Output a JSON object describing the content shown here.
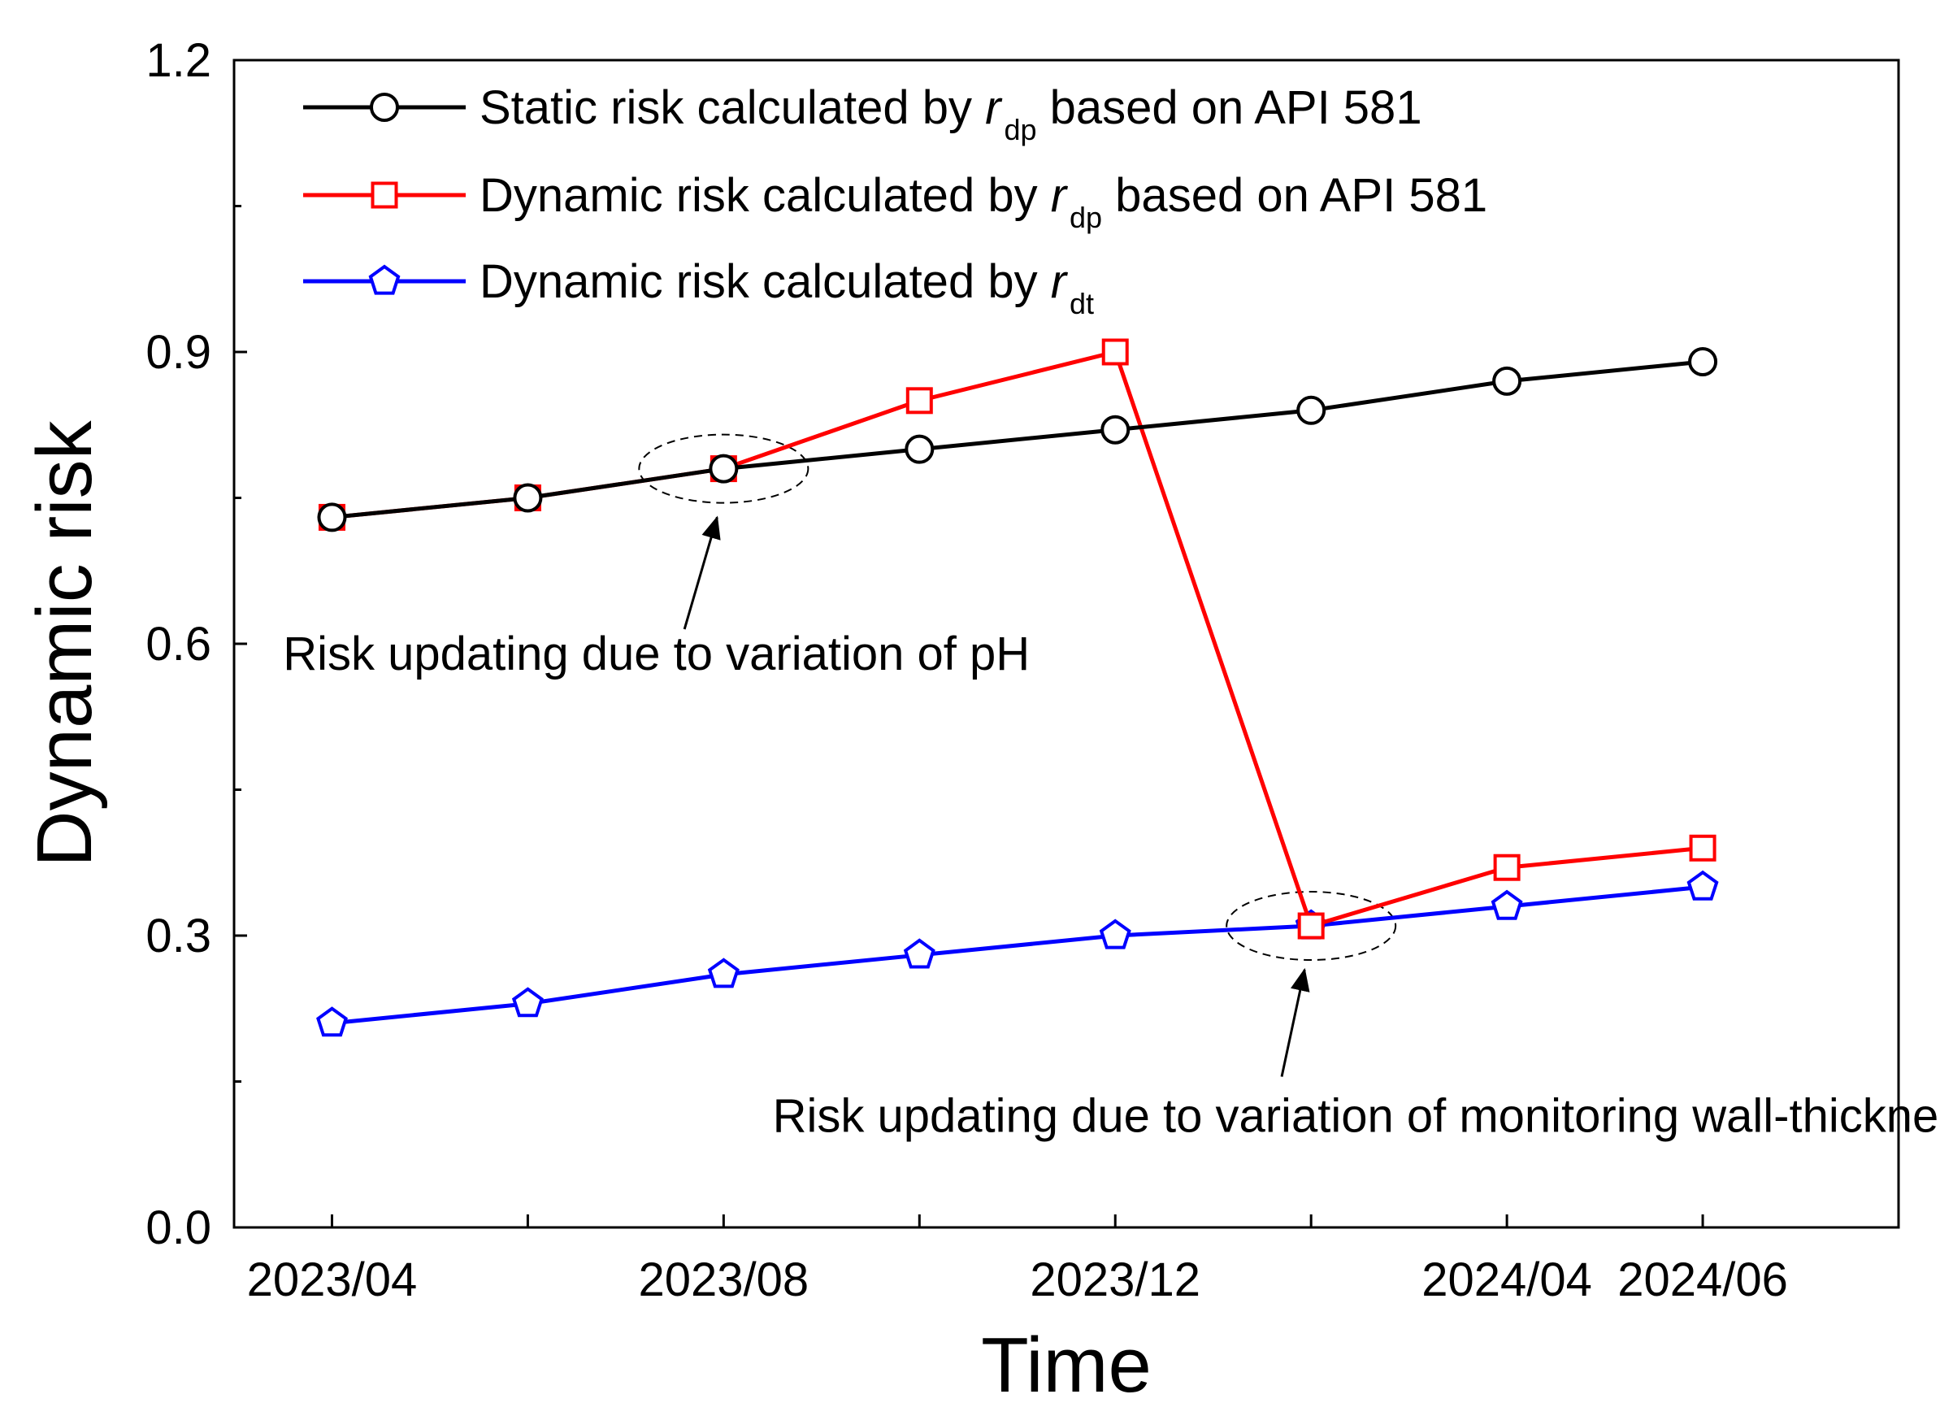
{
  "chart_data": {
    "type": "line",
    "title": "",
    "xlabel": "Time",
    "ylabel": "Dynamic risk",
    "ylim": [
      0.0,
      1.2
    ],
    "yticks": [
      "0.0",
      "0.3",
      "0.6",
      "0.9",
      "1.2"
    ],
    "x": [
      0,
      2,
      4,
      6,
      8,
      10,
      12,
      14
    ],
    "xlim": [
      -1,
      16
    ],
    "xtick_positions": [
      0,
      4,
      8,
      12,
      14
    ],
    "xtick_labels": [
      "2023/04",
      "2023/08",
      "2023/12",
      "2024/04",
      "2024/06"
    ],
    "series": [
      {
        "name": "Static risk calculated by r_dp based on API 581",
        "legend_prefix": "Static risk calculated by ",
        "legend_var": "r",
        "legend_sub": "dp",
        "legend_suffix": " based on API 581",
        "color": "#000000",
        "marker": "circle",
        "values": [
          0.73,
          0.75,
          0.78,
          0.8,
          0.82,
          0.84,
          0.87,
          0.89
        ]
      },
      {
        "name": "Dynamic risk calculated by r_dp based on API 581",
        "legend_prefix": "Dynamic risk calculated by ",
        "legend_var": "r",
        "legend_sub": "dp",
        "legend_suffix": " based on API 581",
        "color": "#ff0000",
        "marker": "square",
        "values": [
          0.73,
          0.75,
          0.78,
          0.85,
          0.9,
          0.31,
          0.37,
          0.39
        ]
      },
      {
        "name": "Dynamic risk calculated by r_dt",
        "legend_prefix": "Dynamic risk calculated by ",
        "legend_var": "r",
        "legend_sub": "dt",
        "legend_suffix": "",
        "color": "#0000ff",
        "marker": "pentagon",
        "values": [
          0.21,
          0.23,
          0.26,
          0.28,
          0.3,
          0.31,
          0.33,
          0.35
        ]
      }
    ],
    "annotations": [
      {
        "text": "Risk updating due to variation of pH",
        "target_x": 4,
        "target_y": 0.78,
        "label_x": -0.5,
        "label_y": 0.59,
        "arrow_tip_y": 0.73,
        "arrow_tail_x": 3.6,
        "arrow_tail_y": 0.615
      },
      {
        "text": "Risk updating due to variation of monitoring wall-thickness",
        "target_x": 10,
        "target_y": 0.31,
        "label_x": 4.5,
        "label_y": 0.115,
        "arrow_tip_y": 0.265,
        "arrow_tail_x": 9.7,
        "arrow_tail_y": 0.155
      }
    ]
  }
}
